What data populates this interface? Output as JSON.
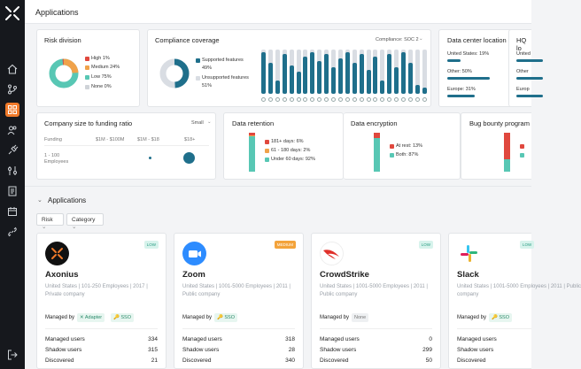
{
  "window": {
    "title": "Applications"
  },
  "risk": {
    "title": "Risk division",
    "legend": [
      {
        "label": "High 1%",
        "color": "#e0483e"
      },
      {
        "label": "Medium 24%",
        "color": "#f0a24a"
      },
      {
        "label": "Low 75%",
        "color": "#58c7b4"
      },
      {
        "label": "None 0%",
        "color": "#cfd3d8"
      }
    ]
  },
  "compliance": {
    "title": "Compliance coverage",
    "filter": "Compliance: SOC 2",
    "legend": [
      {
        "label": "Supported features",
        "value": "49%",
        "color": "#1f6f8b"
      },
      {
        "label": "Unsupported features",
        "value": "51%",
        "color": "#d9dde3"
      }
    ],
    "bars": [
      0.95,
      0.7,
      0.3,
      0.9,
      0.65,
      0.5,
      0.85,
      0.95,
      0.75,
      0.9,
      0.6,
      0.8,
      0.95,
      0.7,
      0.9,
      0.55,
      0.85,
      0.3,
      0.9,
      0.6,
      0.95,
      0.7,
      0.2,
      0.15
    ]
  },
  "dc": {
    "title": "Data center location",
    "rows": [
      {
        "label": "United States: 19%",
        "w": 0.2
      },
      {
        "label": "Other: 50%",
        "w": 0.62
      },
      {
        "label": "Europe: 31%",
        "w": 0.4
      }
    ]
  },
  "hq": {
    "title": "HQ lo",
    "rows": [
      {
        "label": "United"
      },
      {
        "label": "Other"
      },
      {
        "label": "Europ"
      }
    ]
  },
  "size": {
    "title": "Company size to funding ratio",
    "filter": "Small",
    "col0": "Funding",
    "cols": [
      "$1M - $100M",
      "$1M - $18",
      "$18+"
    ],
    "row_label1": "1 - 100",
    "row_label2": "Employees"
  },
  "retention": {
    "title": "Data retention",
    "legend": [
      {
        "label": "181+ days: 6%",
        "color": "#e0483e"
      },
      {
        "label": "61 - 180 days: 2%",
        "color": "#f0a24a"
      },
      {
        "label": "Under 60 days: 92%",
        "color": "#58c7b4"
      }
    ]
  },
  "encryption": {
    "title": "Data encryption",
    "legend": [
      {
        "label": "At rest: 13%",
        "color": "#e0483e"
      },
      {
        "label": "Both: 87%",
        "color": "#58c7b4"
      }
    ]
  },
  "bounty": {
    "title": "Bug bounty program"
  },
  "apps_section": {
    "title": "Applications",
    "filters": [
      "Risk",
      "Category"
    ]
  },
  "apps": [
    {
      "name": "Axonius",
      "badge": "LOW",
      "meta": "United States | 101-250 Employees | 2017 | Private company",
      "managed_by": "Managed by",
      "chips": [
        "Adapter",
        "SSO"
      ],
      "managed": "334",
      "shadow": "315",
      "discovered": "21",
      "logo_bg": "#111"
    },
    {
      "name": "Zoom",
      "badge": "MEDIUM",
      "meta": "United States | 1001-5000 Employees | 2011 | Public company",
      "managed_by": "Managed by",
      "chips": [
        "SSO"
      ],
      "managed": "318",
      "shadow": "28",
      "discovered": "340",
      "logo_bg": "#2d8cff"
    },
    {
      "name": "CrowdStrike",
      "badge": "LOW",
      "meta": "United States | 1001-5000 Employees | 2011 | Public company",
      "managed_by": "Managed by",
      "chips": [
        "None"
      ],
      "managed": "0",
      "shadow": "299",
      "discovered": "50",
      "logo_bg": "#fff"
    },
    {
      "name": "Slack",
      "badge": "LOW",
      "meta": "United States | 1001-5000 Employees | 2011 | Public company",
      "managed_by": "Managed by",
      "chips": [
        "SSO"
      ],
      "managed": "",
      "shadow": "",
      "discovered": "",
      "logo_bg": "#fff"
    }
  ],
  "labels": {
    "managed_users": "Managed users",
    "shadow_users": "Shadow users",
    "discovered": "Discovered"
  }
}
